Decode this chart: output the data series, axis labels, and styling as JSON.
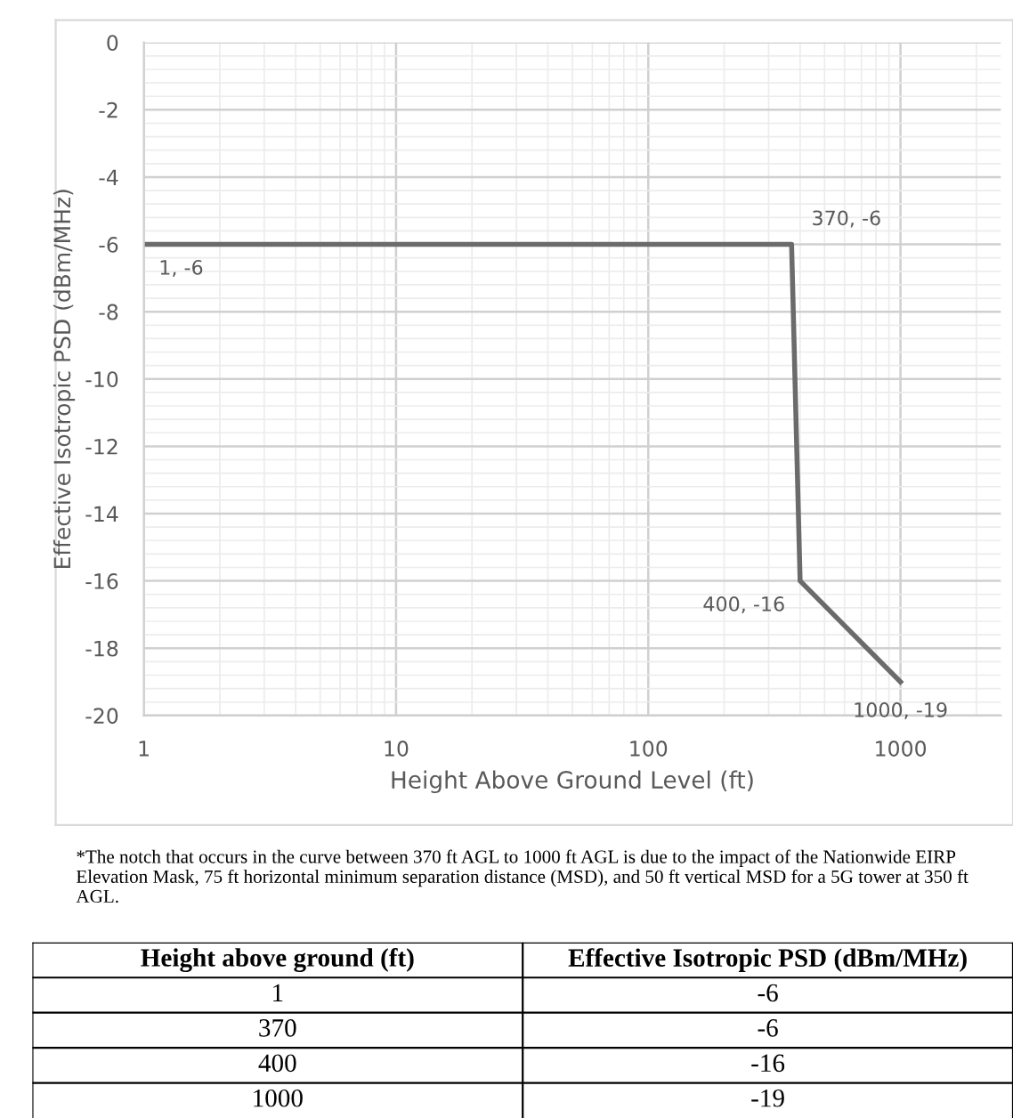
{
  "chart_data": {
    "type": "line",
    "xlabel": "Height Above Ground Level (ft)",
    "ylabel": "Effective Isotropic PSD (dBm/MHz)",
    "x": [
      1,
      370,
      400,
      1000
    ],
    "series": [
      {
        "color": "#6b6b6b",
        "values": [
          -6,
          -6,
          -16,
          -19
        ],
        "value_labels": [
          "1, -6",
          "370, -6",
          "400, -16",
          "1000, -19"
        ]
      }
    ],
    "log": "x",
    "xlim": [
      1,
      2500
    ],
    "xticks": [
      1,
      10,
      100,
      1000
    ],
    "ylim": [
      -20,
      0
    ],
    "yticks": [
      0,
      -2,
      -4,
      -6,
      -8,
      -10,
      -12,
      -14,
      -16,
      -18,
      -20
    ],
    "grid": true,
    "legend": false,
    "marker": "none",
    "line_style": "solid",
    "annotations": [
      "*The notch that occurs in the curve between 370 ft AGL to 1000 ft AGL is due to the impact of the Nationwide EIRP Elevation Mask, 75 ft horizontal minimum separation distance (MSD), and 50 ft vertical MSD for a 5G tower at 350 ft AGL.",
      "Height above ground (ft)",
      "Effective Isotropic PSD (dBm/MHz)",
      "1",
      "-6",
      "370",
      "-6",
      "400",
      "-16",
      "1000",
      "-19"
    ]
  }
}
